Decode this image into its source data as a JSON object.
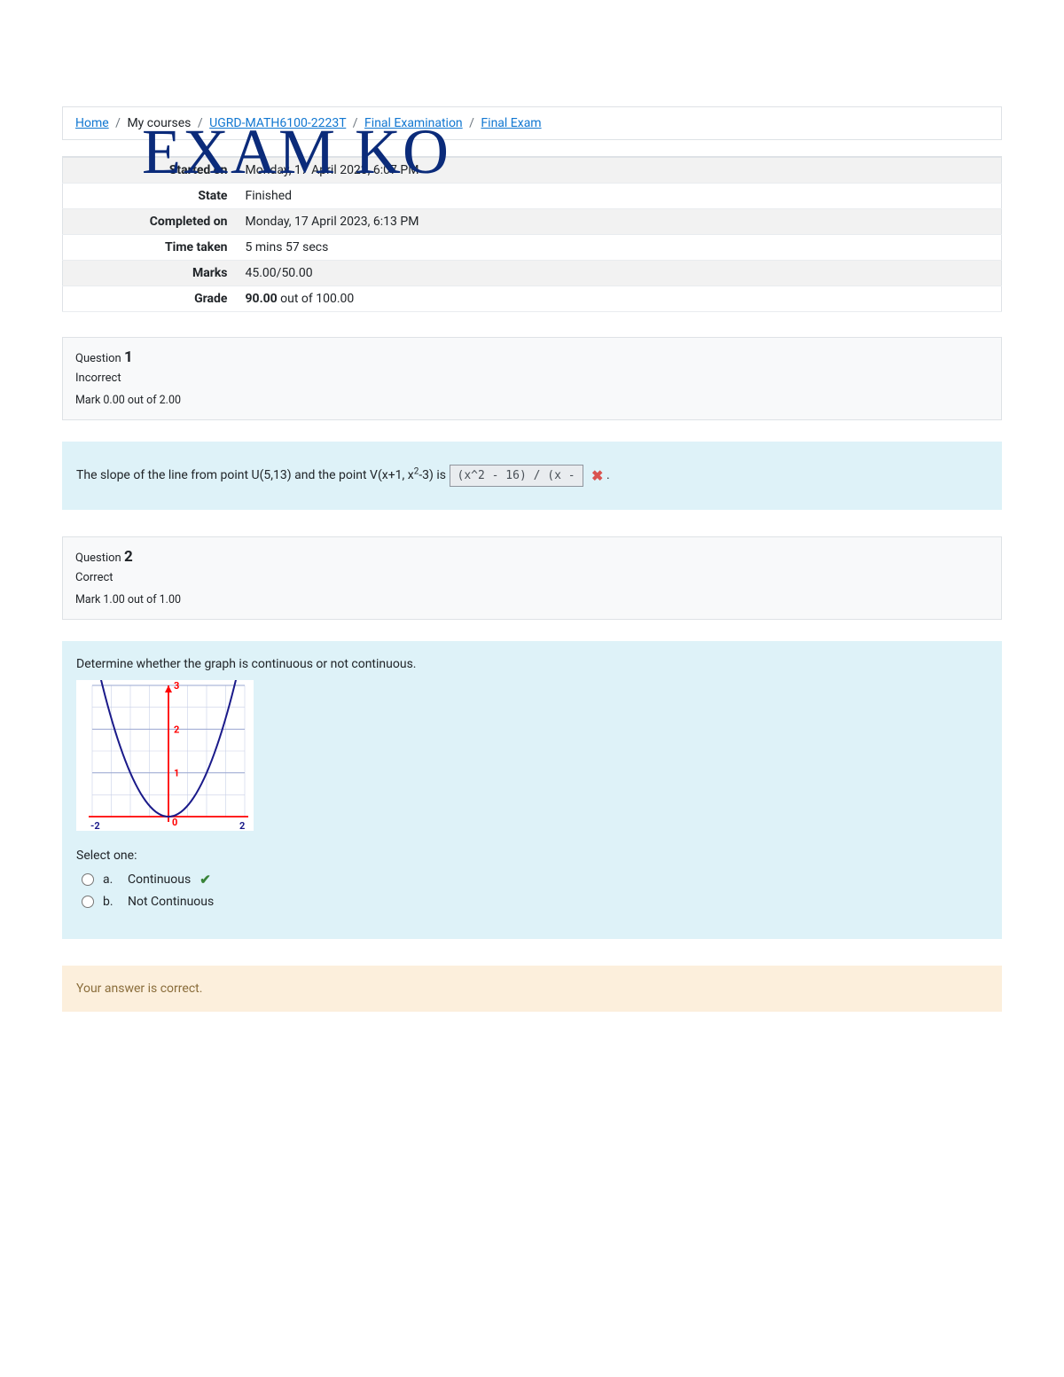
{
  "watermark": "EXAM KO",
  "breadcrumb": {
    "home": "Home",
    "my_courses": "My courses",
    "course": "UGRD-MATH6100-2223T",
    "section": "Final Examination",
    "exam": "Final Exam"
  },
  "info": {
    "started_on_label": "Started on",
    "started_on": "Monday, 17 April 2023, 6:07 PM",
    "state_label": "State",
    "state": "Finished",
    "completed_on_label": "Completed on",
    "completed_on": "Monday, 17 April 2023, 6:13 PM",
    "time_taken_label": "Time taken",
    "time_taken": "5 mins 57 secs",
    "marks_label": "Marks",
    "marks": "45.00/50.00",
    "grade_label": "Grade",
    "grade_bold": "90.00",
    "grade_rest": " out of 100.00"
  },
  "q1": {
    "label": "Question ",
    "number": "1",
    "state": "Incorrect",
    "mark": "Mark 0.00 out of 2.00",
    "text_prefix": "The slope of the line from point U(5,13) and the point V(x+1, x",
    "text_sup": "2",
    "text_suffix": "-3) is ",
    "answer": "(x^2 - 16) / (x -",
    "trailing": " ."
  },
  "q2": {
    "label": "Question ",
    "number": "2",
    "state": "Correct",
    "mark": "Mark 1.00 out of 1.00",
    "prompt": "Determine whether the graph is continuous or not continuous.",
    "select_label": "Select one:",
    "options": [
      {
        "letter": "a.",
        "text": "Continuous",
        "correct": true
      },
      {
        "letter": "b.",
        "text": "Not Continuous",
        "correct": false
      }
    ],
    "graph": {
      "type": "line",
      "background_color": "#ffffff",
      "grid_color": "#c9d0e8",
      "axis_color": "#ff0000",
      "curve_color": "#1a1a8a",
      "label_color_x": "#1a1a8a",
      "label_color_y": "#ff0000",
      "xlim": [
        -2,
        2
      ],
      "ylim": [
        0,
        3
      ],
      "x_ticks": [
        -2,
        2
      ],
      "y_ticks": [
        0,
        1,
        2,
        3
      ],
      "curve": "y = x^2",
      "points": [
        {
          "x": -2,
          "y": 4
        },
        {
          "x": -1.6,
          "y": 2.56
        },
        {
          "x": -1.2,
          "y": 1.44
        },
        {
          "x": -0.8,
          "y": 0.64
        },
        {
          "x": -0.4,
          "y": 0.16
        },
        {
          "x": 0,
          "y": 0
        },
        {
          "x": 0.4,
          "y": 0.16
        },
        {
          "x": 0.8,
          "y": 0.64
        },
        {
          "x": 1.2,
          "y": 1.44
        },
        {
          "x": 1.6,
          "y": 2.56
        },
        {
          "x": 2,
          "y": 4
        }
      ],
      "line_width": 2
    }
  },
  "feedback": {
    "text": "Your answer is correct."
  },
  "colors": {
    "link": "#1177d1",
    "watermark": "#0b2b7a",
    "border": "#dee2e6",
    "header_bg": "#f8f9fa",
    "body_bg": "#def2f8",
    "feedback_bg": "#fcefdc",
    "feedback_text": "#8a6d3b",
    "wrong": "#d9534f",
    "right": "#398439"
  }
}
